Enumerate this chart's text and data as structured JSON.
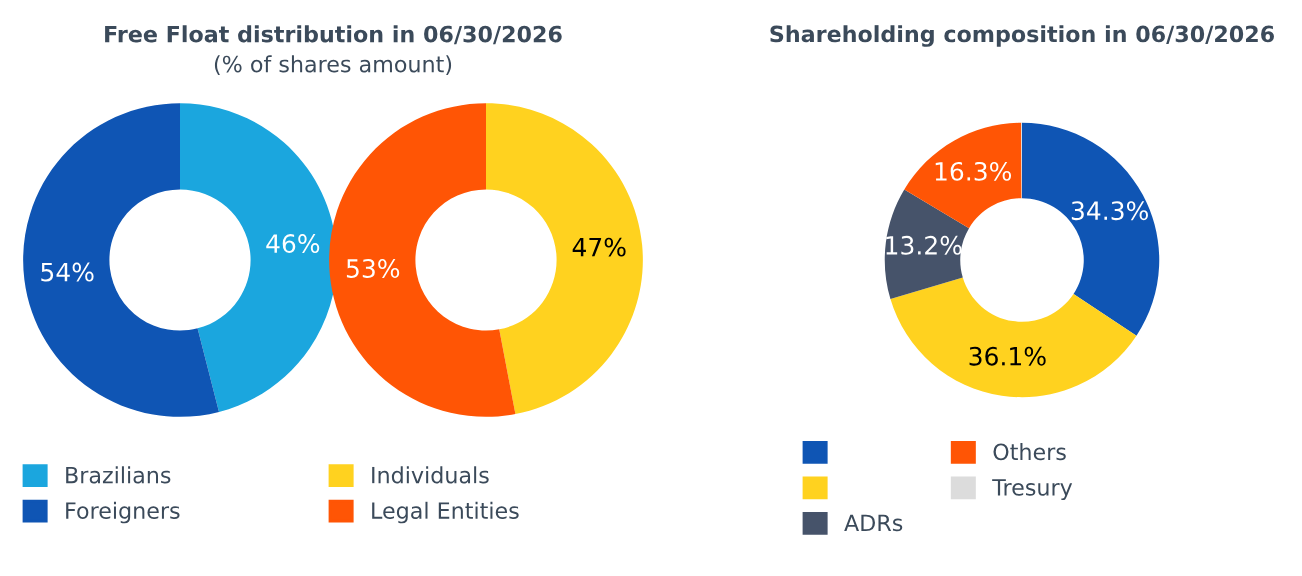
{
  "chart_data": [
    {
      "type": "donut",
      "title": "Free Float distribution in 06/30/2026",
      "subtitle": "(% of shares amount)",
      "categories": [
        "Brazilians",
        "Foreigners"
      ],
      "values": [
        46,
        54
      ],
      "colors": [
        "#1ba6de",
        "#0f55b4"
      ],
      "value_labels": [
        "46%",
        "54%"
      ],
      "legend": "bottom"
    },
    {
      "type": "donut",
      "categories": [
        "Individuals",
        "Legal Entities"
      ],
      "values": [
        47,
        53
      ],
      "colors": [
        "#ffd21f",
        "#ff5505"
      ],
      "value_labels": [
        "47%",
        "53%"
      ],
      "legend": "bottom"
    },
    {
      "type": "donut",
      "title": "Shareholding composition in 06/30/2026",
      "categories": [
        null,
        null,
        "ADRs",
        "Others",
        "Tresury"
      ],
      "values": [
        34.3,
        36.1,
        13.2,
        16.3,
        0.1
      ],
      "colors": [
        "#0f55b4",
        "#ffd21f",
        "#46536a",
        "#ff5505",
        "#dcdcdc"
      ],
      "value_labels": [
        "34.3%",
        "36.1%",
        "13.2%",
        "16.3%",
        null
      ],
      "legend": "bottom"
    }
  ]
}
